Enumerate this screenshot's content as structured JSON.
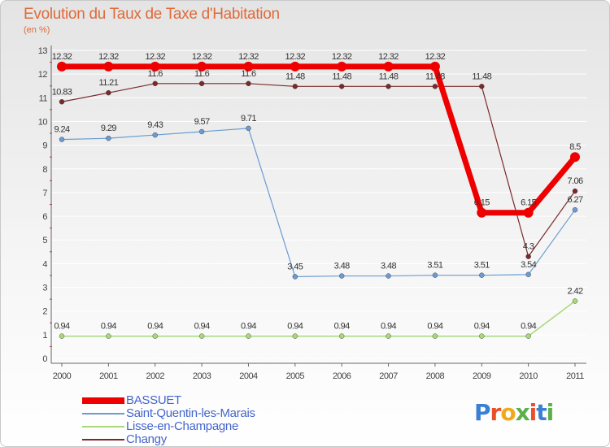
{
  "header": {
    "title": "Evolution du Taux de Taxe d'Habitation",
    "subtitle": "(en %)"
  },
  "logo": {
    "text": "Proxiti",
    "colors": [
      "#3b7fd4",
      "#e8502a",
      "#f2a81d",
      "#5bb04a",
      "#e8502a",
      "#3b7fd4",
      "#5bb04a"
    ]
  },
  "chart_data": {
    "type": "line",
    "title": "Evolution du Taux de Taxe d'Habitation",
    "ylabel": "(en %)",
    "xlabel": "",
    "categories": [
      "2000",
      "2001",
      "2002",
      "2003",
      "2004",
      "2005",
      "2006",
      "2007",
      "2008",
      "2009",
      "2010",
      "2011"
    ],
    "ylim": [
      0,
      13
    ],
    "yticks": [
      0,
      1,
      2,
      3,
      4,
      5,
      6,
      7,
      8,
      9,
      10,
      11,
      12,
      13
    ],
    "grid": true,
    "series": [
      {
        "name": "BASSUET",
        "color": "#ee0000",
        "width": 7,
        "marker": 6,
        "values": [
          12.32,
          12.32,
          12.32,
          12.32,
          12.32,
          12.32,
          12.32,
          12.32,
          12.32,
          6.15,
          6.15,
          8.5
        ],
        "labels": [
          "12.32",
          "12.32",
          "12.32",
          "12.32",
          "12.32",
          "12.32",
          "12.32",
          "12.32",
          "12.32",
          "6.15",
          "6.15",
          "8.5"
        ]
      },
      {
        "name": "Saint-Quentin-les-Marais",
        "color": "#6b9bd0",
        "width": 1.2,
        "marker": 3,
        "values": [
          9.24,
          9.29,
          9.43,
          9.57,
          9.71,
          3.45,
          3.48,
          3.48,
          3.51,
          3.51,
          3.54,
          6.27
        ],
        "labels": [
          "9.24",
          "9.29",
          "9.43",
          "9.57",
          "9.71",
          "3.45",
          "3.48",
          "3.48",
          "3.51",
          "3.51",
          "3.54",
          "6.27"
        ]
      },
      {
        "name": "Lisse-en-Champagne",
        "color": "#a8d878",
        "width": 1.5,
        "marker": 3,
        "values": [
          0.94,
          0.94,
          0.94,
          0.94,
          0.94,
          0.94,
          0.94,
          0.94,
          0.94,
          0.94,
          0.94,
          2.42
        ],
        "labels": [
          "0.94",
          "0.94",
          "0.94",
          "0.94",
          "0.94",
          "0.94",
          "0.94",
          "0.94",
          "0.94",
          "0.94",
          "0.94",
          "2.42"
        ]
      },
      {
        "name": "Changy",
        "color": "#7a2a2a",
        "width": 1.2,
        "marker": 3,
        "values": [
          10.83,
          11.21,
          11.6,
          11.6,
          11.6,
          11.48,
          11.48,
          11.48,
          11.48,
          11.48,
          4.3,
          7.06
        ],
        "labels": [
          "10.83",
          "11.21",
          "11.6",
          "11.6",
          "11.6",
          "11.48",
          "11.48",
          "11.48",
          "11.48",
          "11.48",
          "4.3",
          "7.06"
        ]
      }
    ]
  }
}
